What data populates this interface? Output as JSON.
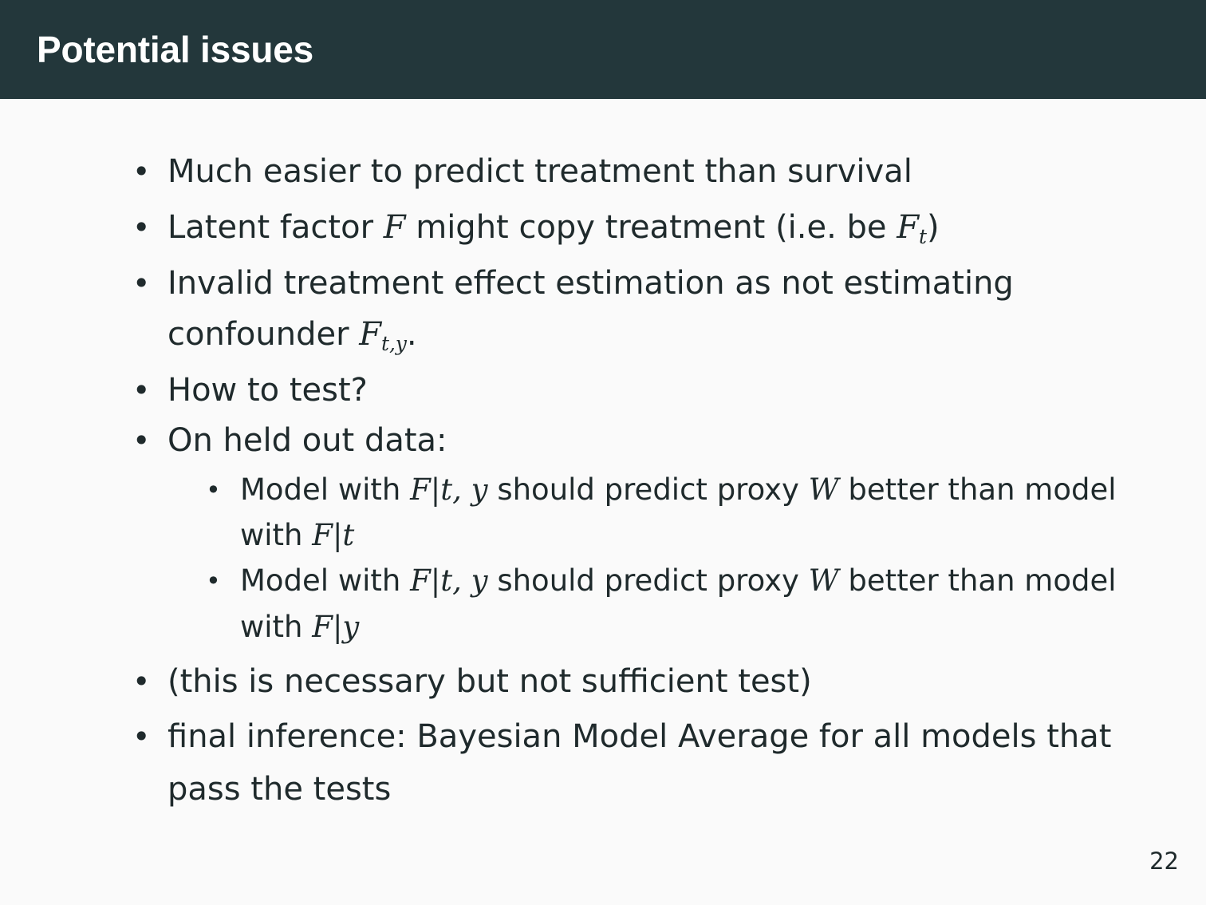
{
  "slide": {
    "title": "Potential issues",
    "bullets": [
      {
        "text": "Much easier to predict treatment than survival"
      },
      {
        "prefix": "Latent factor ",
        "var_f": "F",
        "middle": " might copy treatment (i.e. be ",
        "var_f_t": "F",
        "sub_t": "t",
        "suffix": ")"
      },
      {
        "line1": "Invalid treatment effect estimation as not estimating",
        "line2_prefix": "confounder ",
        "var_f": "F",
        "sub_ty": "t,y",
        "line2_suffix": "."
      },
      {
        "text": "How to test?"
      },
      {
        "text": "On held out data:",
        "subitems": [
          {
            "line1_prefix": "Model with ",
            "math1": "F|t, y",
            "line1_middle": " should predict proxy ",
            "var_w": "W",
            "line1_suffix": " better than model",
            "line2_prefix": "with ",
            "math2": "F|t"
          },
          {
            "line1_prefix": "Model with ",
            "math1": "F|t, y",
            "line1_middle": " should predict proxy ",
            "var_w": "W",
            "line1_suffix": " better than model",
            "line2_prefix": "with ",
            "math2": "F|y"
          }
        ]
      },
      {
        "text": "(this is necessary but not sufficient test)"
      },
      {
        "line1": "final inference: Bayesian Model Average for all models that",
        "line2": "pass the tests"
      }
    ],
    "bullet_symbol": "•",
    "page_number": "22"
  },
  "colors": {
    "header_background": "#23373b",
    "title_text": "#ffffff",
    "body_text": "#1f2a2c",
    "background": "#fafafa"
  }
}
